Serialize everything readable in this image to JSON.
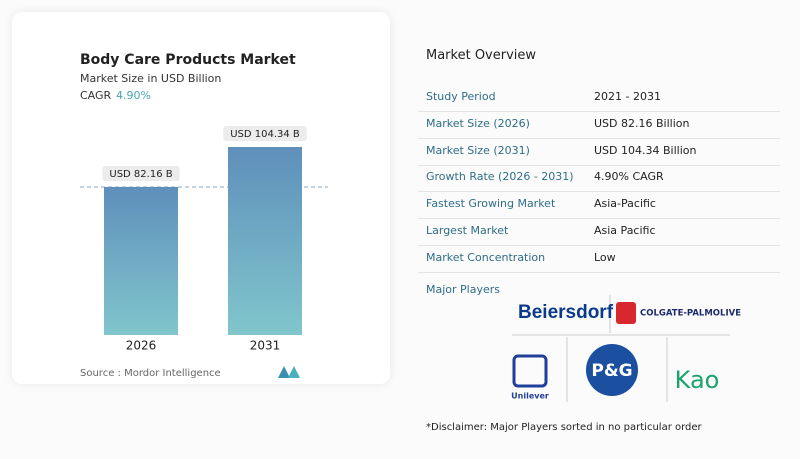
{
  "chart_data": {
    "type": "bar",
    "title": "Body Care Products Market",
    "subtitle": "Market Size in USD Billion",
    "cagr_label": "CAGR",
    "cagr": "4.90%",
    "categories": [
      "2026",
      "2031"
    ],
    "values": [
      82.16,
      104.34
    ],
    "value_labels": [
      "USD 82.16 B",
      "USD 104.34 B"
    ],
    "source": "Source :  Mordor Intelligence"
  },
  "overview": {
    "title": "Market Overview",
    "rows": [
      [
        "Study Period",
        "2021 - 2031"
      ],
      [
        "Market Size (2026)",
        "USD 82.16 Billion"
      ],
      [
        "Market Size (2031)",
        "USD 104.34 Billion"
      ],
      [
        "Growth Rate (2026 - 2031)",
        "4.90% CAGR"
      ],
      [
        "Fastest Growing Market",
        "Asia-Pacific"
      ],
      [
        "Largest Market",
        "Asia Pacific"
      ],
      [
        "Market Concentration",
        "Low"
      ]
    ],
    "players_title": "Major Players",
    "players": [
      "Beiersdorf",
      "COLGATE-PALMOLIVE",
      "Unilever",
      "P&G",
      "Kao"
    ],
    "disclaimer": "*Disclaimer: Major Players sorted in no particular order"
  }
}
